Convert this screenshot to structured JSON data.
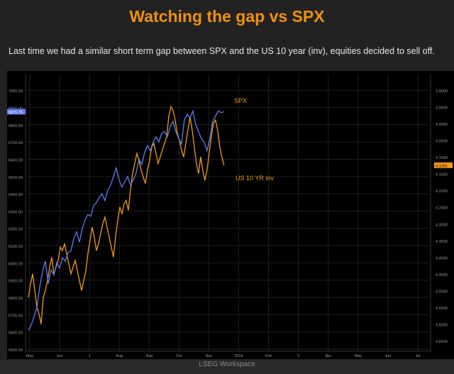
{
  "header": {
    "title": "Watching the gap vs SPX",
    "subtitle": "Last time we had a similar short term gap between SPX and the US 10 year (inv), equities decided to sell off."
  },
  "footer": {
    "label": "LSEG Workspace"
  },
  "colors": {
    "spx": "#5f7cf0",
    "us10": "#f29a1a",
    "text": "#9a9a9a",
    "grid": "#1f1f1f"
  },
  "chart_data": {
    "type": "line",
    "title": "Watching the gap vs SPX",
    "x_tick_labels": [
      "May",
      "Jun",
      "J",
      "Aug",
      "Sep",
      "Oct",
      "Nov",
      "2026",
      "Feb",
      "3",
      "Apr",
      "May",
      "Jun",
      "Jul"
    ],
    "left_axis": {
      "ylim": [
        5500,
        7050
      ],
      "ticks": [
        "7000.00",
        "6900.00",
        "6800.00",
        "6700.00",
        "6600.00",
        "6500.00",
        "6400.00",
        "6300.00",
        "6200.00",
        "6100.00",
        "6000.00",
        "5900.00",
        "5800.00",
        "5700.00",
        "5600.00",
        "5500.00"
      ],
      "last_value_label": "6875.75"
    },
    "right_axis": {
      "inverted": true,
      "ylim": [
        3.875,
        4.675
      ],
      "ticks": [
        "3.9000",
        "3.9500",
        "4.0000",
        "4.0500",
        "4.1000",
        "4.1500",
        "4.2000",
        "4.2500",
        "4.3000",
        "4.3500",
        "4.4000",
        "4.4500",
        "4.5000",
        "4.5500",
        "4.6000",
        "4.6500"
      ],
      "last_value_label": "4.1251"
    },
    "series": [
      {
        "name": "SPX",
        "axis": "left",
        "values": [
          5610,
          5640,
          5690,
          5740,
          5860,
          5950,
          6010,
          5880,
          5960,
          5930,
          6000,
          5970,
          6030,
          6010,
          6060,
          6070,
          6140,
          6180,
          6120,
          6200,
          6250,
          6280,
          6270,
          6330,
          6350,
          6380,
          6400,
          6360,
          6420,
          6450,
          6500,
          6550,
          6480,
          6440,
          6470,
          6500,
          6450,
          6480,
          6520,
          6600,
          6570,
          6640,
          6680,
          6650,
          6700,
          6730,
          6700,
          6750,
          6760,
          6730,
          6790,
          6820,
          6760,
          6720,
          6690,
          6830,
          6860,
          6840,
          6880,
          6800,
          6760,
          6720,
          6700,
          6650,
          6720,
          6820,
          6850,
          6880,
          6870,
          6875.75
        ]
      },
      {
        "name": "US 10 YR inv",
        "axis": "right",
        "values": [
          4.52,
          4.48,
          4.45,
          4.5,
          4.55,
          4.57,
          4.6,
          4.52,
          4.5,
          4.47,
          4.43,
          4.4,
          4.45,
          4.43,
          4.41,
          4.37,
          4.38,
          4.36,
          4.39,
          4.42,
          4.45,
          4.43,
          4.41,
          4.44,
          4.47,
          4.5,
          4.47,
          4.44,
          4.39,
          4.35,
          4.31,
          4.34,
          4.38,
          4.36,
          4.33,
          4.3,
          4.28,
          4.31,
          4.34,
          4.37,
          4.4,
          4.34,
          4.29,
          4.25,
          4.27,
          4.24,
          4.23,
          4.26,
          4.2,
          4.15,
          4.12,
          4.09,
          4.11,
          4.14,
          4.16,
          4.18,
          4.14,
          4.11,
          4.07,
          4.06,
          4.09,
          4.12,
          4.1,
          4.08,
          4.06,
          4.04,
          3.98,
          3.95,
          3.96,
          3.99,
          4.03,
          4.05,
          4.08,
          4.1,
          4.06,
          4.02,
          3.98,
          4.02,
          4.07,
          4.12,
          4.15,
          4.1,
          4.14,
          4.17,
          4.14,
          4.09,
          4.04,
          4.0,
          3.99,
          4.02,
          4.07,
          4.1,
          4.1251
        ]
      }
    ],
    "annotations": [
      {
        "text": "SPX",
        "series": "SPX"
      },
      {
        "text": "US 10 YR inv",
        "series": "US 10 YR inv"
      }
    ]
  }
}
